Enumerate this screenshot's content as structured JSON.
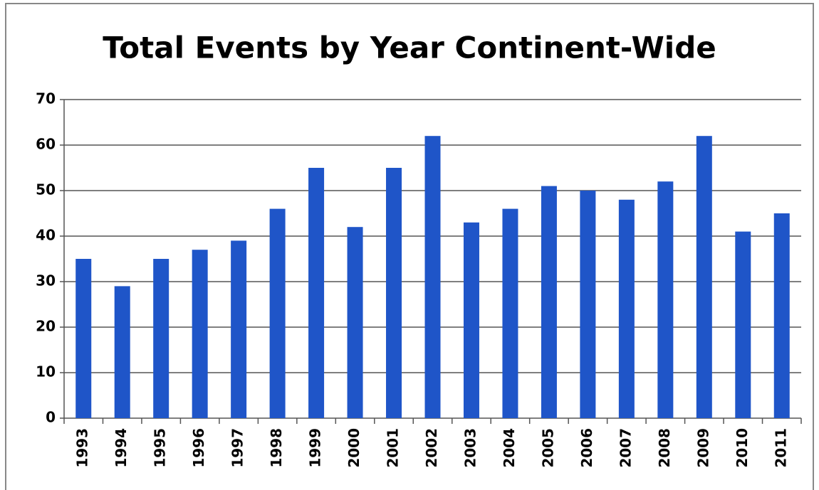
{
  "chart_data": {
    "type": "bar",
    "title": "Total Events by Year Continent-Wide",
    "categories": [
      "1993",
      "1994",
      "1995",
      "1996",
      "1997",
      "1998",
      "1999",
      "2000",
      "2001",
      "2002",
      "2003",
      "2004",
      "2005",
      "2006",
      "2007",
      "2008",
      "2009",
      "2010",
      "2011"
    ],
    "values": [
      35,
      29,
      35,
      37,
      39,
      46,
      55,
      42,
      55,
      62,
      43,
      46,
      51,
      50,
      48,
      52,
      62,
      41,
      45
    ],
    "color": "#1f55c8",
    "ylim": [
      0,
      70
    ],
    "yticks": [
      0,
      10,
      20,
      30,
      40,
      50,
      60,
      70
    ],
    "grid": true
  }
}
